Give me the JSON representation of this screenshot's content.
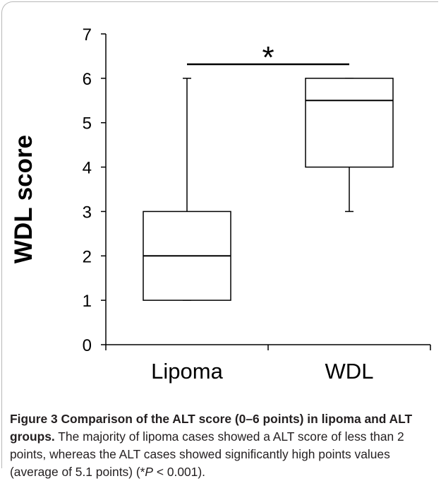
{
  "chart_data": {
    "type": "box",
    "title": "",
    "xlabel": "",
    "ylabel": "WDL score",
    "ylim": [
      0,
      7
    ],
    "yticks": [
      "0",
      "1",
      "2",
      "3",
      "4",
      "5",
      "6",
      "7"
    ],
    "categories": [
      "Lipoma",
      "WDL"
    ],
    "boxes": [
      {
        "category": "Lipoma",
        "min": 1,
        "q1": 1,
        "median": 2,
        "q3": 3,
        "max": 6
      },
      {
        "category": "WDL",
        "min": 3,
        "q1": 4,
        "median": 5.5,
        "q3": 6,
        "max": 6
      }
    ],
    "significance": {
      "between": [
        "Lipoma",
        "WDL"
      ],
      "label": "*"
    },
    "grid": false,
    "legend": "none",
    "colors": {
      "box_fill": "#ffffff",
      "stroke": "#000000"
    }
  },
  "caption": {
    "figure_title": "Figure 3 Comparison of the ALT score (0–6 points) in lipoma and ALT groups.",
    "text_part1": " The majority of lipoma cases showed a ALT score of less than 2 points, whereas the ALT cases showed significantly high points values (average of 5.1 points) (*",
    "text_italic": "P",
    "text_part2": " < 0.001)."
  }
}
